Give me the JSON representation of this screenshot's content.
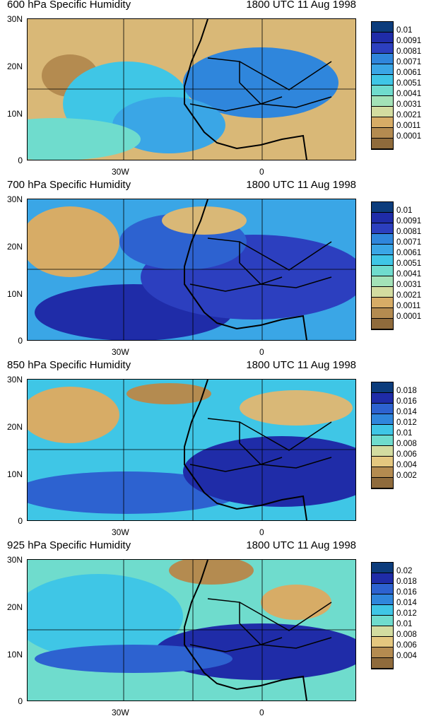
{
  "panels": [
    {
      "title": "600 hPa Specific Humidity",
      "date": "1800 UTC 11 Aug 1998",
      "lat_labels": [
        "30N",
        "20N",
        "10N",
        "0"
      ],
      "lon_labels": [
        "30W",
        "0"
      ],
      "legend": [
        "0.01",
        "0.0091",
        "0.0081",
        "0.0071",
        "0.0061",
        "0.0051",
        "0.0041",
        "0.0031",
        "0.0021",
        "0.0011",
        "0.0001"
      ]
    },
    {
      "title": "700 hPa Specific Humidity",
      "date": "1800 UTC 11 Aug 1998",
      "lat_labels": [
        "30N",
        "20N",
        "10N",
        "0"
      ],
      "lon_labels": [
        "30W",
        "0"
      ],
      "legend": [
        "0.01",
        "0.0091",
        "0.0081",
        "0.0071",
        "0.0061",
        "0.0051",
        "0.0041",
        "0.0031",
        "0.0021",
        "0.0011",
        "0.0001"
      ]
    },
    {
      "title": "850 hPa Specific Humidity",
      "date": "1800 UTC 11 Aug 1998",
      "lat_labels": [
        "30N",
        "20N",
        "10N",
        "0"
      ],
      "lon_labels": [
        "30W",
        "0"
      ],
      "legend": [
        "0.018",
        "0.016",
        "0.014",
        "0.012",
        "0.01",
        "0.008",
        "0.006",
        "0.004",
        "0.002"
      ]
    },
    {
      "title": "925 hPa Specific Humidity",
      "date": "1800 UTC 11 Aug 1998",
      "lat_labels": [
        "30N",
        "20N",
        "10N",
        "0"
      ],
      "lon_labels": [
        "30W",
        "0"
      ],
      "legend": [
        "0.02",
        "0.018",
        "0.016",
        "0.014",
        "0.012",
        "0.01",
        "0.008",
        "0.006",
        "0.004"
      ]
    }
  ],
  "palette": [
    "#0c3c7c",
    "#1f2ca8",
    "#2c3fbf",
    "#2d62d0",
    "#2f86dc",
    "#3aa6e6",
    "#3fc6e6",
    "#6fdccd",
    "#a3e2b7",
    "#d3dca0",
    "#e4c77f",
    "#d7ac66",
    "#b48b50",
    "#8f6b3c"
  ]
}
